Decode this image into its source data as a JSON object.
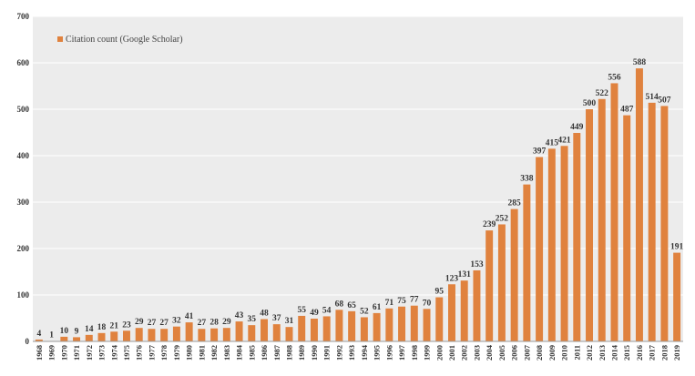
{
  "colors": {
    "bar": "#E0823E",
    "plot_bg": "#ECECEC",
    "grid": "#FFFFFF",
    "axis": "#9A9A9A"
  },
  "chart_data": {
    "type": "bar",
    "title": "",
    "xlabel": "",
    "ylabel": "",
    "ylim": [
      0,
      700
    ],
    "yticks": [
      0,
      100,
      200,
      300,
      400,
      500,
      600,
      700
    ],
    "grid": true,
    "legend_position": "top-left",
    "series": [
      {
        "name": "Citation count (Google Scholar)"
      }
    ],
    "categories": [
      "1968",
      "1969",
      "1970",
      "1971",
      "1972",
      "1973",
      "1974",
      "1975",
      "1976",
      "1977",
      "1978",
      "1979",
      "1980",
      "1981",
      "1982",
      "1983",
      "1984",
      "1985",
      "1986",
      "1987",
      "1988",
      "1989",
      "1990",
      "1991",
      "1992",
      "1993",
      "1994",
      "1995",
      "1996",
      "1997",
      "1998",
      "1999",
      "2000",
      "2001",
      "2002",
      "2003",
      "2004",
      "2005",
      "2006",
      "2007",
      "2008",
      "2009",
      "2010",
      "2011",
      "2012",
      "2013",
      "2014",
      "2015",
      "2016",
      "2017",
      "2018",
      "2019"
    ],
    "values": [
      4,
      1,
      10,
      9,
      14,
      18,
      21,
      23,
      29,
      27,
      27,
      32,
      41,
      27,
      28,
      29,
      43,
      35,
      48,
      37,
      31,
      55,
      49,
      54,
      68,
      65,
      52,
      61,
      71,
      75,
      77,
      70,
      95,
      123,
      131,
      153,
      239,
      252,
      285,
      338,
      397,
      415,
      421,
      449,
      500,
      522,
      556,
      487,
      588,
      514,
      507,
      191
    ]
  }
}
